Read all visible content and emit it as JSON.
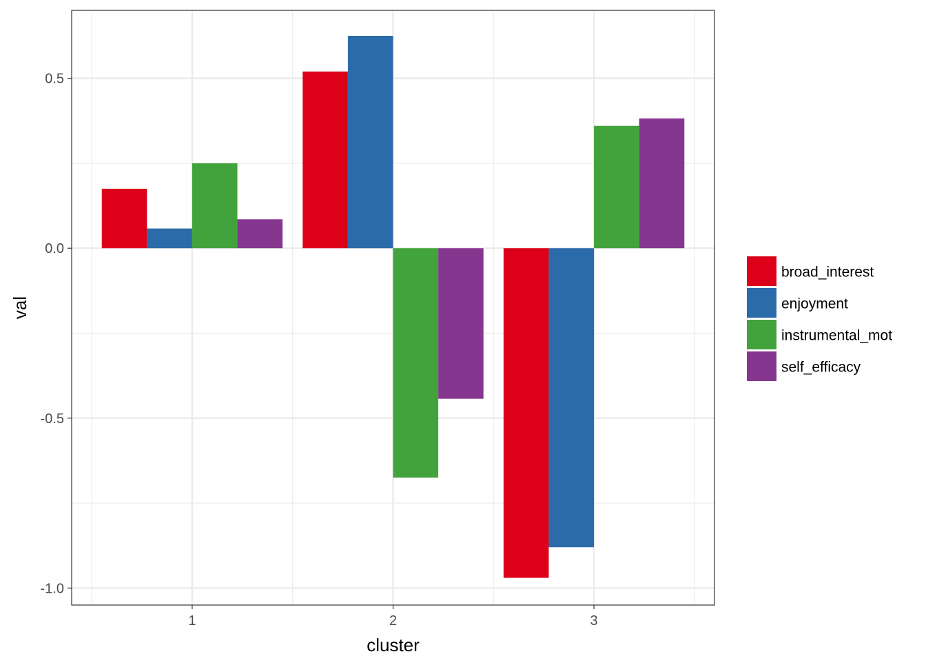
{
  "chart_data": {
    "type": "bar",
    "xlabel": "cluster",
    "ylabel": "val",
    "categories": [
      "1",
      "2",
      "3"
    ],
    "ylim": [
      -1.05,
      0.7
    ],
    "yticks": [
      0.5,
      0.0,
      -0.5,
      -1.0
    ],
    "ytick_labels": [
      "0.5",
      "0.0",
      "-0.5",
      "-1.0"
    ],
    "grid": true,
    "legend_position": "right",
    "series": [
      {
        "name": "broad_interest",
        "color": "#DC0019",
        "values": [
          0.175,
          0.52,
          -0.97
        ]
      },
      {
        "name": "enjoyment",
        "color": "#2C6BAA",
        "values": [
          0.058,
          0.625,
          -0.88
        ]
      },
      {
        "name": "instrumental_mot",
        "color": "#42A33C",
        "values": [
          0.25,
          -0.675,
          0.36
        ]
      },
      {
        "name": "self_efficacy",
        "color": "#85378F",
        "values": [
          0.085,
          -0.443,
          0.382
        ]
      }
    ]
  }
}
